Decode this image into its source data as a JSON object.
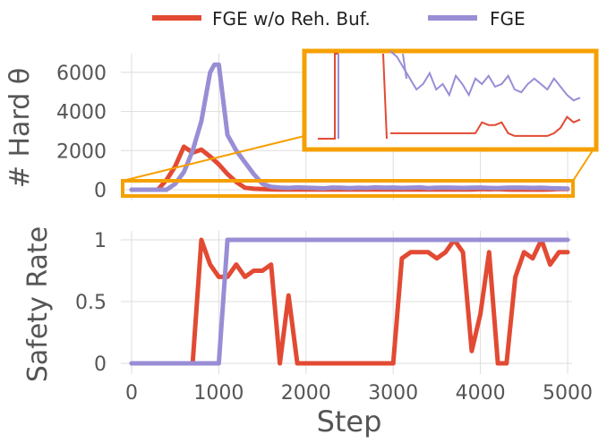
{
  "legend": {
    "position": "top-center",
    "entries": [
      {
        "label": "FGE w/o Reh. Buf.",
        "color": "#e24a33"
      },
      {
        "label": "FGE",
        "color": "#988ed5"
      }
    ]
  },
  "chart_data": [
    {
      "type": "line",
      "ylabel": "# Hard θ",
      "xlim": [
        0,
        5000
      ],
      "ylim": [
        0,
        6500
      ],
      "yticks": [
        0,
        2000,
        4000,
        6000
      ],
      "ytick_labels": [
        "0",
        "2000",
        "4000",
        "6000"
      ],
      "grid": true,
      "series": [
        {
          "name": "FGE w/o Reh. Buf.",
          "color": "#e24a33",
          "x": [
            0,
            100,
            200,
            300,
            400,
            500,
            600,
            700,
            800,
            900,
            1000,
            1100,
            1200,
            1300,
            1400,
            1500,
            1600,
            1700,
            1800,
            1900,
            2000,
            2100,
            2200,
            2300,
            2400,
            2500,
            2600,
            2700,
            2800,
            2900,
            3000,
            3100,
            3200,
            3300,
            3400,
            3500,
            3600,
            3700,
            3800,
            3900,
            4000,
            4100,
            4200,
            4300,
            4400,
            4500,
            4600,
            4700,
            4800,
            4900,
            5000
          ],
          "y": [
            0,
            0,
            0,
            0,
            500,
            1200,
            2200,
            1900,
            2050,
            1700,
            1300,
            800,
            400,
            100,
            50,
            30,
            20,
            15,
            15,
            10,
            10,
            10,
            10,
            10,
            10,
            10,
            10,
            10,
            10,
            10,
            10,
            10,
            10,
            10,
            10,
            10,
            10,
            10,
            10,
            10,
            30,
            25,
            30,
            10,
            5,
            5,
            5,
            5,
            10,
            40,
            30
          ]
        },
        {
          "name": "FGE",
          "color": "#988ed5",
          "x": [
            0,
            100,
            200,
            300,
            400,
            500,
            600,
            700,
            800,
            900,
            950,
            1000,
            1100,
            1200,
            1300,
            1400,
            1500,
            1600,
            1700,
            1800,
            1900,
            2000,
            2100,
            2200,
            2300,
            2400,
            2500,
            2600,
            2700,
            2800,
            2900,
            3000,
            3100,
            3200,
            3300,
            3400,
            3500,
            3600,
            3700,
            3800,
            3900,
            4000,
            4100,
            4200,
            4300,
            4400,
            4500,
            4600,
            4700,
            4800,
            4900,
            5000
          ],
          "y": [
            0,
            0,
            0,
            0,
            0,
            300,
            900,
            2000,
            3500,
            6000,
            6400,
            6400,
            2800,
            2000,
            1400,
            800,
            300,
            150,
            110,
            90,
            120,
            100,
            90,
            70,
            110,
            100,
            80,
            100,
            90,
            120,
            100,
            110,
            90,
            100,
            120,
            80,
            100,
            110,
            100,
            90,
            100,
            110,
            90,
            80,
            100,
            110,
            100,
            90,
            100,
            80,
            70,
            60
          ]
        }
      ],
      "inset": {
        "zoomed_y_range": "near 0",
        "red_y": [
          10,
          10,
          10,
          10,
          10,
          10,
          10,
          10,
          10,
          10,
          10,
          10,
          10,
          10,
          30,
          25,
          25,
          30,
          10,
          5,
          5,
          5,
          5,
          5,
          5,
          10,
          20,
          40,
          30,
          35
        ],
        "purple_y": [
          160,
          150,
          130,
          110,
          90,
          100,
          120,
          90,
          100,
          80,
          115,
          100,
          80,
          110,
          100,
          115,
          95,
          100,
          115,
          90,
          85,
          100,
          110,
          100,
          90,
          110,
          95,
          80,
          70,
          75
        ]
      }
    },
    {
      "type": "line",
      "xlabel": "Step",
      "ylabel": "Safety Rate",
      "xlim": [
        0,
        5000
      ],
      "ylim": [
        0,
        1
      ],
      "xticks": [
        0,
        1000,
        2000,
        3000,
        4000,
        5000
      ],
      "xtick_labels": [
        "0",
        "1000",
        "2000",
        "3000",
        "4000",
        "5000"
      ],
      "yticks": [
        0,
        0.5,
        1
      ],
      "ytick_labels": [
        "0",
        "0.5",
        "1"
      ],
      "grid": true,
      "series": [
        {
          "name": "FGE w/o Reh. Buf.",
          "color": "#e24a33",
          "x": [
            0,
            100,
            200,
            300,
            400,
            500,
            600,
            700,
            800,
            900,
            1000,
            1100,
            1200,
            1300,
            1400,
            1500,
            1600,
            1700,
            1800,
            1900,
            2000,
            2100,
            2200,
            2300,
            2400,
            2500,
            2600,
            2700,
            2800,
            2900,
            3000,
            3100,
            3200,
            3300,
            3400,
            3500,
            3600,
            3700,
            3800,
            3900,
            4000,
            4100,
            4200,
            4300,
            4400,
            4500,
            4600,
            4700,
            4800,
            4900,
            5000
          ],
          "y": [
            0,
            0,
            0,
            0,
            0,
            0,
            0,
            0,
            1.0,
            0.8,
            0.7,
            0.7,
            0.8,
            0.7,
            0.75,
            0.75,
            0.8,
            0.0,
            0.55,
            0.0,
            0.0,
            0.0,
            0.0,
            0.0,
            0.0,
            0.0,
            0.0,
            0.0,
            0.0,
            0.0,
            0.0,
            0.85,
            0.9,
            0.9,
            0.9,
            0.85,
            0.9,
            1.0,
            0.9,
            0.1,
            0.4,
            0.9,
            0.0,
            0.0,
            0.7,
            0.9,
            0.85,
            1.0,
            0.8,
            0.9,
            0.9
          ]
        },
        {
          "name": "FGE",
          "color": "#988ed5",
          "x": [
            0,
            100,
            200,
            300,
            400,
            500,
            600,
            700,
            800,
            900,
            1000,
            1100,
            1200,
            1300,
            1400,
            1500,
            1600,
            1700,
            1800,
            1900,
            2000,
            2500,
            3000,
            3500,
            4000,
            4500,
            5000
          ],
          "y": [
            0,
            0,
            0,
            0,
            0,
            0,
            0,
            0,
            0,
            0,
            0,
            1.0,
            1.0,
            1.0,
            1.0,
            1.0,
            1.0,
            1.0,
            1.0,
            1.0,
            1.0,
            1.0,
            1.0,
            1.0,
            1.0,
            1.0,
            1.0
          ]
        }
      ]
    }
  ]
}
